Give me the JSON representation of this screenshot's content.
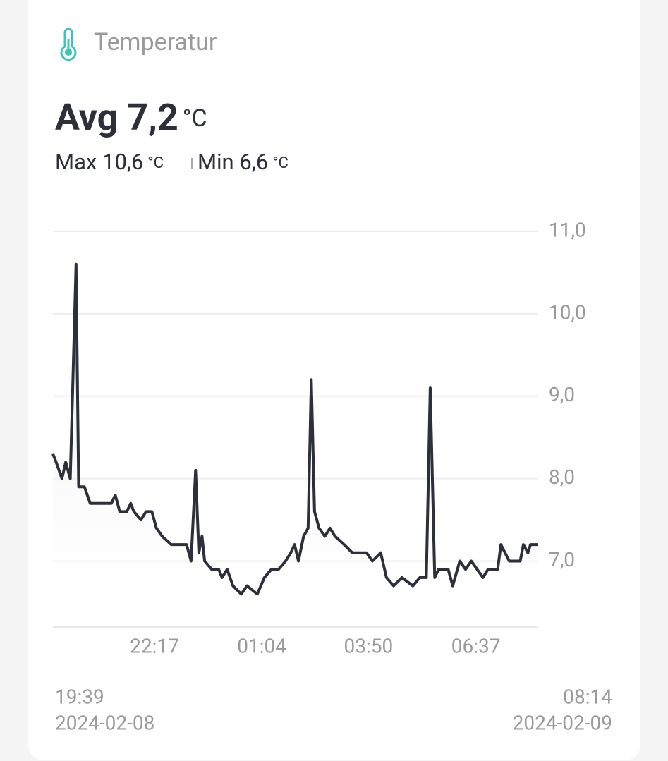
{
  "card": {
    "title": "Temperatur",
    "avg_label": "Avg",
    "avg_value": "7,2",
    "avg_unit": "°C",
    "max_label": "Max",
    "max_value": "10,6",
    "max_unit": "°C",
    "min_label": "Min",
    "min_value": "6,6",
    "min_unit": "°C",
    "start_time": "19:39",
    "start_date": "2024-02-08",
    "end_time": "08:14",
    "end_date": "2024-02-09"
  },
  "chart_data": {
    "type": "line",
    "x": [
      "2024-02-08T19:39",
      "2024-02-08T19:44",
      "2024-02-08T19:53",
      "2024-02-08T19:59",
      "2024-02-08T20:06",
      "2024-02-08T20:15",
      "2024-02-08T20:19",
      "2024-02-08T20:28",
      "2024-02-08T20:37",
      "2024-02-08T21:10",
      "2024-02-08T21:16",
      "2024-02-08T21:23",
      "2024-02-08T21:34",
      "2024-02-08T21:40",
      "2024-02-08T21:45",
      "2024-02-08T21:56",
      "2024-02-08T22:04",
      "2024-02-08T22:13",
      "2024-02-08T22:20",
      "2024-02-08T22:29",
      "2024-02-08T22:43",
      "2024-02-08T23:07",
      "2024-02-08T23:14",
      "2024-02-08T23:21",
      "2024-02-08T23:26",
      "2024-02-08T23:31",
      "2024-02-08T23:35",
      "2024-02-08T23:46",
      "2024-02-08T23:57",
      "2024-02-09T00:02",
      "2024-02-09T00:10",
      "2024-02-09T00:19",
      "2024-02-09T00:32",
      "2024-02-09T00:41",
      "2024-02-09T00:57",
      "2024-02-09T01:08",
      "2024-02-09T01:19",
      "2024-02-09T01:30",
      "2024-02-09T01:41",
      "2024-02-09T01:49",
      "2024-02-09T01:55",
      "2024-02-09T02:01",
      "2024-02-09T02:09",
      "2024-02-09T02:16",
      "2024-02-09T02:21",
      "2024-02-09T02:26",
      "2024-02-09T02:33",
      "2024-02-09T02:42",
      "2024-02-09T02:50",
      "2024-02-09T02:58",
      "2024-02-09T03:12",
      "2024-02-09T03:25",
      "2024-02-09T03:47",
      "2024-02-09T03:56",
      "2024-02-09T04:09",
      "2024-02-09T04:18",
      "2024-02-09T04:29",
      "2024-02-09T04:42",
      "2024-02-09T04:59",
      "2024-02-09T05:10",
      "2024-02-09T05:20",
      "2024-02-09T05:26",
      "2024-02-09T05:33",
      "2024-02-09T05:39",
      "2024-02-09T05:54",
      "2024-02-09T06:01",
      "2024-02-09T06:12",
      "2024-02-09T06:21",
      "2024-02-09T06:30",
      "2024-02-09T06:39",
      "2024-02-09T06:48",
      "2024-02-09T06:56",
      "2024-02-09T07:11",
      "2024-02-09T07:16",
      "2024-02-09T07:29",
      "2024-02-09T07:46",
      "2024-02-09T07:51",
      "2024-02-09T07:58",
      "2024-02-09T08:02",
      "2024-02-09T08:14"
    ],
    "values": [
      8.3,
      8.2,
      8.0,
      8.2,
      8.0,
      10.6,
      7.9,
      7.9,
      7.7,
      7.7,
      7.8,
      7.6,
      7.6,
      7.7,
      7.6,
      7.5,
      7.6,
      7.6,
      7.4,
      7.3,
      7.2,
      7.2,
      7.0,
      8.1,
      7.1,
      7.3,
      7.0,
      6.9,
      6.9,
      6.8,
      6.9,
      6.7,
      6.6,
      6.7,
      6.6,
      6.8,
      6.9,
      6.9,
      7.0,
      7.1,
      7.2,
      7.0,
      7.3,
      7.4,
      9.2,
      7.6,
      7.4,
      7.3,
      7.4,
      7.3,
      7.2,
      7.1,
      7.1,
      7.0,
      7.1,
      6.8,
      6.7,
      6.8,
      6.7,
      6.8,
      6.8,
      9.1,
      6.8,
      6.9,
      6.9,
      6.7,
      7.0,
      6.9,
      7.0,
      6.9,
      6.8,
      6.9,
      6.9,
      7.2,
      7.0,
      7.0,
      7.2,
      7.1,
      7.2,
      7.2
    ],
    "color": "#2d2f3a",
    "xlim": [
      "2024-02-08T19:39",
      "2024-02-09T08:14"
    ],
    "xticks": [
      {
        "value": "2024-02-08T22:17",
        "label": "22:17"
      },
      {
        "value": "2024-02-09T01:04",
        "label": "01:04"
      },
      {
        "value": "2024-02-09T03:50",
        "label": "03:50"
      },
      {
        "value": "2024-02-09T06:37",
        "label": "06:37"
      }
    ],
    "ylim": [
      6.2,
      11
    ],
    "yticks": [
      {
        "value": 7,
        "label": "7,0"
      },
      {
        "value": 8,
        "label": "8,0"
      },
      {
        "value": 9,
        "label": "9,0"
      },
      {
        "value": 10,
        "label": "10,0"
      },
      {
        "value": 11,
        "label": "11,0"
      }
    ],
    "grid": true
  }
}
